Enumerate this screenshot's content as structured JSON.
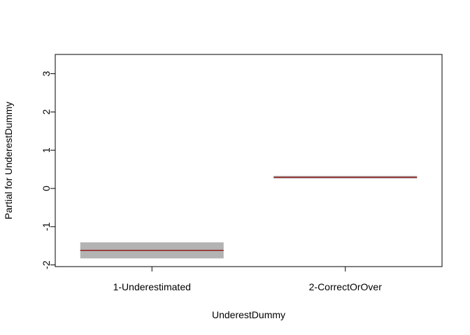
{
  "chart_data": {
    "type": "bar",
    "title": "",
    "xlabel": "UnderestDummy",
    "ylabel": "Partial for UnderestDummy",
    "ylim": [
      -2,
      3.5
    ],
    "yticks": [
      -2,
      -1,
      0,
      1,
      2,
      3
    ],
    "ytick_labels": [
      "-2",
      "-1",
      "0",
      "1",
      "2",
      "3"
    ],
    "categories": [
      "1-Underestimated",
      "2-CorrectOrOver"
    ],
    "series": [
      {
        "values": [
          -1.62,
          0.29
        ],
        "lower": [
          -1.83,
          0.26
        ],
        "upper": [
          -1.41,
          0.33
        ]
      }
    ],
    "grid": false,
    "colors": {
      "effect_line": "#8b0000",
      "band": "#b3b3b3",
      "axis": "#000000"
    }
  }
}
